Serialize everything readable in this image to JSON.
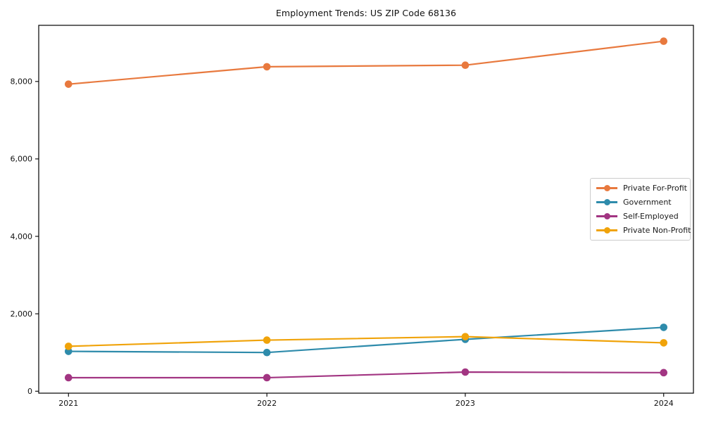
{
  "chart_data": {
    "type": "line",
    "title": "Employment Trends: US ZIP Code 68136",
    "xlabel": "",
    "ylabel": "",
    "x": [
      2021,
      2022,
      2023,
      2024
    ],
    "x_tick_labels": [
      "2021",
      "2022",
      "2023",
      "2024"
    ],
    "y_ticks": [
      0,
      2000,
      4000,
      6000,
      8000
    ],
    "y_tick_labels": [
      "0",
      "2,000",
      "4,000",
      "6,000",
      "8,000"
    ],
    "xlim": [
      2020.85,
      2024.15
    ],
    "ylim": [
      -50,
      9450
    ],
    "grid": false,
    "legend_position": "center-right",
    "marker": "circle",
    "background_color": "#ffffff",
    "spine_color": "#000000",
    "series": [
      {
        "name": "Private For-Profit",
        "color": "#e8793e",
        "values": [
          7930,
          8380,
          8420,
          9040
        ]
      },
      {
        "name": "Government",
        "color": "#2e8bab",
        "values": [
          1030,
          1000,
          1340,
          1650
        ]
      },
      {
        "name": "Self-Employed",
        "color": "#a23582",
        "values": [
          350,
          350,
          495,
          480
        ]
      },
      {
        "name": "Private Non-Profit",
        "color": "#f0a30a",
        "values": [
          1160,
          1320,
          1410,
          1250
        ]
      }
    ]
  }
}
